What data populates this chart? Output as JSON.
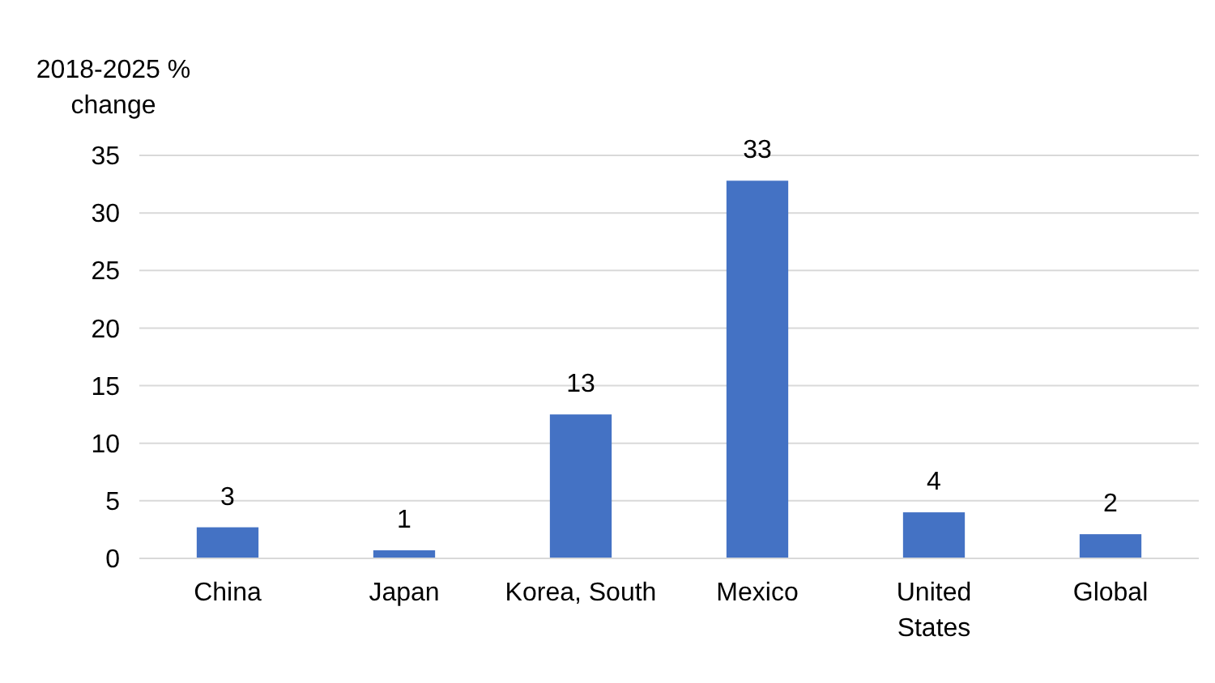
{
  "chart_data": {
    "type": "bar",
    "ylabel": "2018-2025 % change",
    "categories": [
      "China",
      "Japan",
      "Korea, South",
      "Mexico",
      "United States",
      "Global"
    ],
    "values": [
      2.7,
      0.7,
      12.5,
      32.8,
      4,
      2.1
    ],
    "value_labels": [
      "3",
      "1",
      "13",
      "33",
      "4",
      "2"
    ],
    "color": "#4472c4",
    "ylim": [
      0,
      35
    ],
    "yticks": [
      0,
      5,
      10,
      15,
      20,
      25,
      30,
      35
    ],
    "grid": "y"
  }
}
